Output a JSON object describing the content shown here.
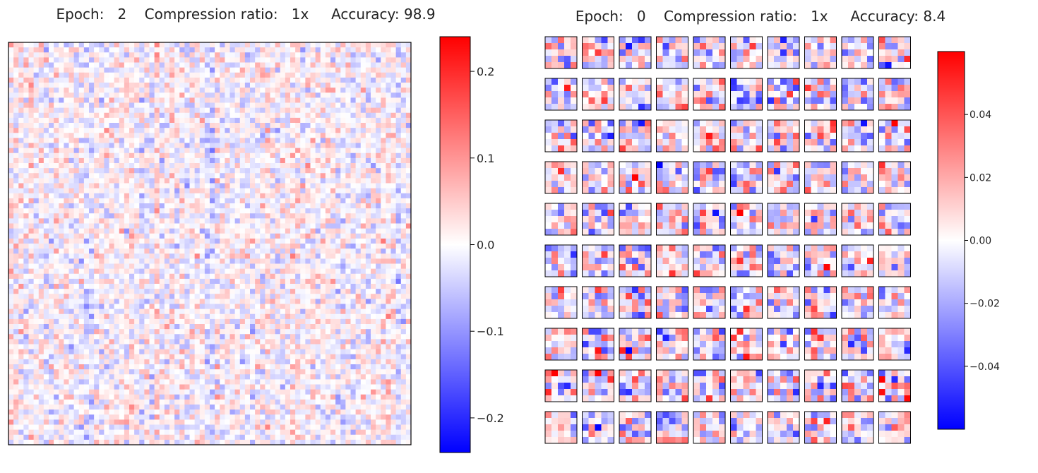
{
  "chart_data": [
    {
      "type": "heatmap",
      "title": "Epoch:   2    Compression ratio:   1x     Accuracy: 98.9",
      "grid": {
        "rows": 80,
        "cols": 80
      },
      "colormap": "bwr",
      "colorbar": {
        "vmin": -0.24,
        "vmax": 0.24,
        "ticks": [
          0.2,
          0.1,
          0.0,
          -0.1,
          -0.2
        ],
        "tick_labels": [
          "0.2",
          "0.1",
          "0.0",
          "−0.1",
          "−0.2"
        ]
      },
      "value_spread": 0.08
    },
    {
      "type": "heatmap",
      "title": "Epoch:   0    Compression ratio:   1x     Accuracy: 8.4",
      "layout": "small-multiples",
      "grid": {
        "rows": 10,
        "cols": 10
      },
      "panel": {
        "rows": 5,
        "cols": 5
      },
      "colormap": "bwr",
      "colorbar": {
        "vmin": -0.06,
        "vmax": 0.06,
        "ticks": [
          0.04,
          0.02,
          0.0,
          -0.02,
          -0.04
        ],
        "tick_labels": [
          "0.04",
          "0.02",
          "0.00",
          "−0.02",
          "−0.04"
        ]
      },
      "value_spread": 0.04
    }
  ]
}
